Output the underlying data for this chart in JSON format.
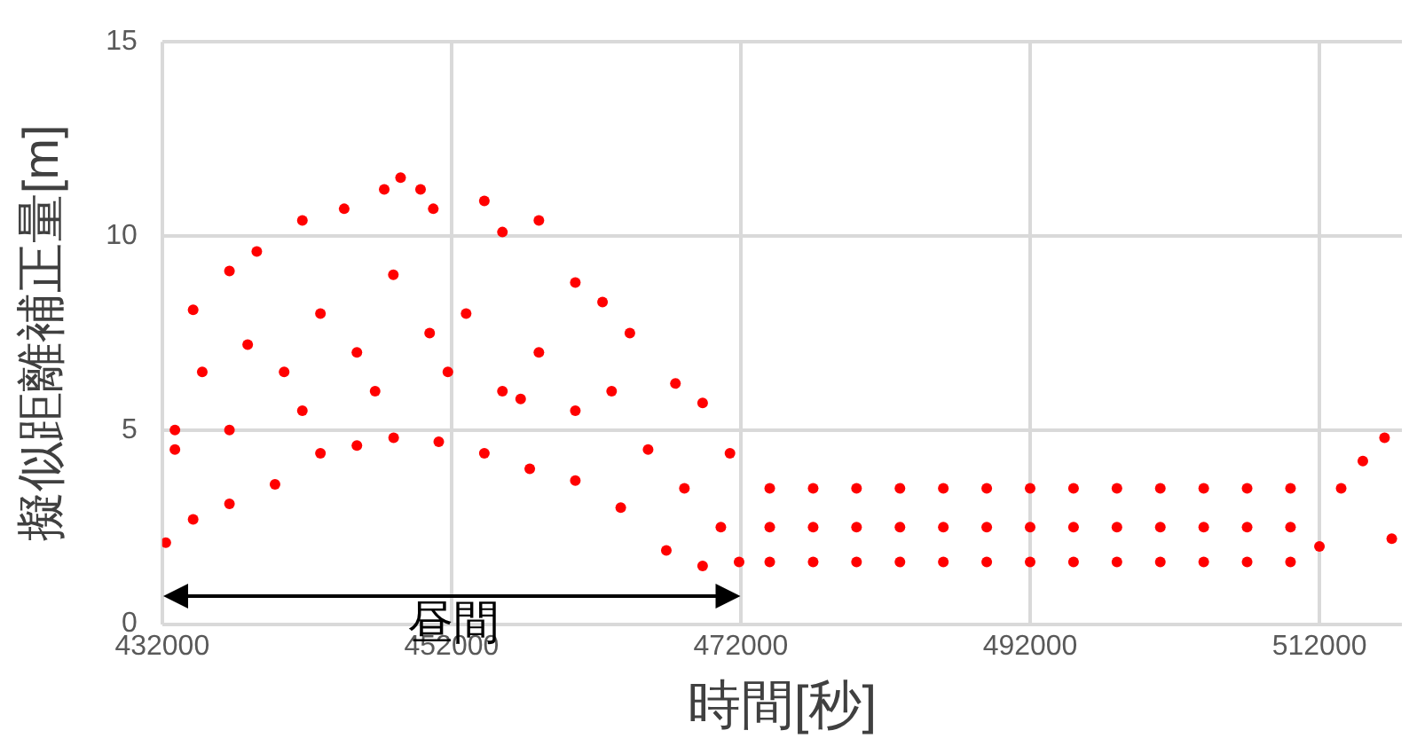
{
  "chart_data": {
    "type": "scatter",
    "xlabel": "時間[秒]",
    "ylabel": "擬似距離補正量[m]",
    "xlim": [
      432000,
      517700
    ],
    "xticks": [
      432000,
      452000,
      472000,
      492000,
      512000
    ],
    "ylim": [
      0,
      15
    ],
    "yticks": [
      0,
      5,
      10,
      15
    ],
    "grid": true,
    "legend": false,
    "marker": "circle",
    "annotations": [
      "昼間"
    ],
    "series": [
      {
        "color": "#ff0000",
        "x": [
          432880,
          434140,
          436650,
          438540,
          441690,
          444580,
          447350,
          448480,
          449860,
          450740,
          454270,
          455520,
          458040,
          460560,
          462440,
          464330,
          467480,
          469360,
          471250,
          432250,
          434140,
          436650,
          439800,
          442940,
          445460,
          448000,
          451120,
          454270,
          457410,
          460560,
          463700,
          466850,
          469360,
          471880,
          432880,
          434770,
          437910,
          440430,
          442940,
          445460,
          447980,
          450490,
          453010,
          455520,
          458040,
          460560,
          463070,
          465590,
          468100,
          470620,
          436650,
          441690,
          446720,
          451750,
          456780,
          474000,
          474000,
          474000,
          477000,
          477000,
          477000,
          480000,
          480000,
          480000,
          483000,
          483000,
          483000,
          486000,
          486000,
          486000,
          489000,
          489000,
          489000,
          492000,
          492000,
          492000,
          495000,
          495000,
          495000,
          498000,
          498000,
          498000,
          501000,
          501000,
          501000,
          504000,
          504000,
          504000,
          507000,
          507000,
          507000,
          510000,
          510000,
          510000,
          512000,
          513500,
          515000,
          516500,
          517000
        ],
        "values": [
          4.5,
          8.1,
          9.1,
          9.6,
          10.4,
          10.7,
          11.2,
          11.5,
          11.2,
          10.7,
          10.9,
          10.1,
          10.4,
          8.8,
          8.3,
          7.5,
          6.2,
          5.7,
          4.4,
          2.1,
          2.7,
          3.1,
          3.6,
          4.4,
          4.6,
          4.8,
          4.7,
          4.4,
          4.0,
          3.7,
          3.0,
          1.9,
          1.5,
          1.6,
          5,
          6.5,
          7.2,
          6.5,
          8,
          7,
          9,
          7.5,
          8,
          6,
          7,
          5.5,
          6,
          4.5,
          3.5,
          2.5,
          5,
          5.5,
          6,
          6.5,
          5.8,
          3.5,
          2.5,
          1.6,
          3.5,
          2.5,
          1.6,
          3.5,
          2.5,
          1.6,
          3.5,
          2.5,
          1.6,
          3.5,
          2.5,
          1.6,
          3.5,
          2.5,
          1.6,
          3.5,
          2.5,
          1.6,
          3.5,
          2.5,
          1.6,
          3.5,
          2.5,
          1.6,
          3.5,
          2.5,
          1.6,
          3.5,
          2.5,
          1.6,
          3.5,
          2.5,
          1.6,
          3.5,
          2.5,
          1.6,
          2.0,
          3.5,
          4.2,
          4.8,
          2.2
        ]
      }
    ]
  }
}
